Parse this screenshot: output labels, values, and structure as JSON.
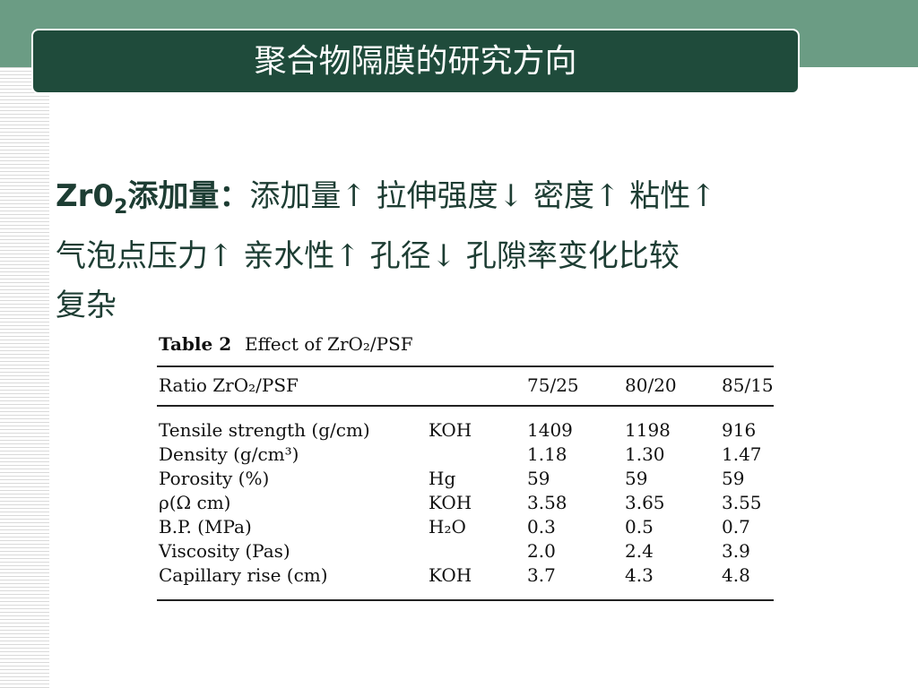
{
  "slide": {
    "title": "聚合物隔膜的研究方向",
    "body": {
      "lead": {
        "text": "Zr0",
        "subscript": "2",
        "suffix": "添加量："
      },
      "lines": [
        "添加量↑ 拉伸强度↓ 密度↑ 粘性↑",
        "气泡点压力↑ 亲水性↑ 孔径↓ 孔隙率变化比较",
        "复杂"
      ]
    },
    "table": {
      "caption_label": "Table 2",
      "caption": "Effect of ZrO₂/PSF",
      "header": {
        "label": "Ratio ZrO₂/PSF",
        "columns": [
          "75/25",
          "80/20",
          "85/15"
        ]
      },
      "rows": [
        {
          "label": "Tensile strength (g/cm)",
          "method": "KOH",
          "values": [
            "1409",
            "1198",
            "916"
          ]
        },
        {
          "label": "Density (g/cm³)",
          "values": [
            "1.18",
            "1.30",
            "1.47"
          ]
        },
        {
          "label": "Porosity (%)",
          "method": "Hg",
          "values": [
            "59",
            "59",
            "59"
          ]
        },
        {
          "label": "ρ(Ω cm)",
          "method": "KOH",
          "values": [
            "3.58",
            "3.65",
            "3.55"
          ]
        },
        {
          "label": "B.P. (MPa)",
          "method": "H₂O",
          "values": [
            "0.3",
            "0.5",
            "0.7"
          ]
        },
        {
          "label": "Viscosity (Pas)",
          "values": [
            "2.0",
            "2.4",
            "3.9"
          ]
        },
        {
          "label": "Capillary rise (cm)",
          "method": "KOH",
          "values": [
            "3.7",
            "4.3",
            "4.8"
          ]
        }
      ]
    }
  }
}
